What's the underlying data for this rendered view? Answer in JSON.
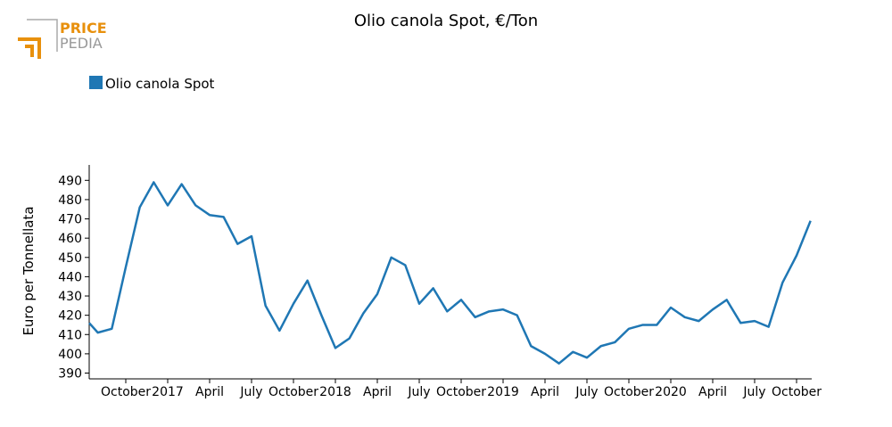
{
  "logo": {
    "line1": "PRICE",
    "line2": "PEDIA"
  },
  "chart_data": {
    "type": "line",
    "title": "Olio canola Spot, €/Ton",
    "y_label": "Euro per Tonnellata",
    "categories": [
      null,
      null,
      null,
      "October",
      null,
      null,
      "2017",
      null,
      null,
      "April",
      null,
      null,
      "July",
      null,
      null,
      "October",
      null,
      null,
      "2018",
      null,
      null,
      "April",
      null,
      null,
      "July",
      null,
      null,
      "October",
      null,
      null,
      "2019",
      null,
      null,
      "April",
      null,
      null,
      "July",
      null,
      null,
      "October",
      null,
      null,
      "2020",
      null,
      null,
      "April",
      null,
      null,
      "July",
      null,
      null,
      "October",
      null
    ],
    "series": [
      {
        "name": "Olio canola Spot",
        "color": "#1f77b4",
        "values": [
          416,
          411,
          413,
          445,
          476,
          489,
          477,
          488,
          477,
          472,
          471,
          457,
          461,
          425,
          412,
          426,
          438,
          420,
          403,
          408,
          421,
          431,
          450,
          446,
          426,
          434,
          422,
          428,
          419,
          422,
          423,
          420,
          404,
          400,
          395,
          401,
          398,
          404,
          406,
          413,
          415,
          415,
          424,
          419,
          417,
          423,
          428,
          416,
          417,
          414,
          437,
          451,
          469
        ]
      }
    ],
    "ylim": [
      387,
      498
    ],
    "yticks": [
      390,
      400,
      410,
      420,
      430,
      440,
      450,
      460,
      470,
      480,
      490
    ],
    "legend": "top-left",
    "grid": false
  }
}
